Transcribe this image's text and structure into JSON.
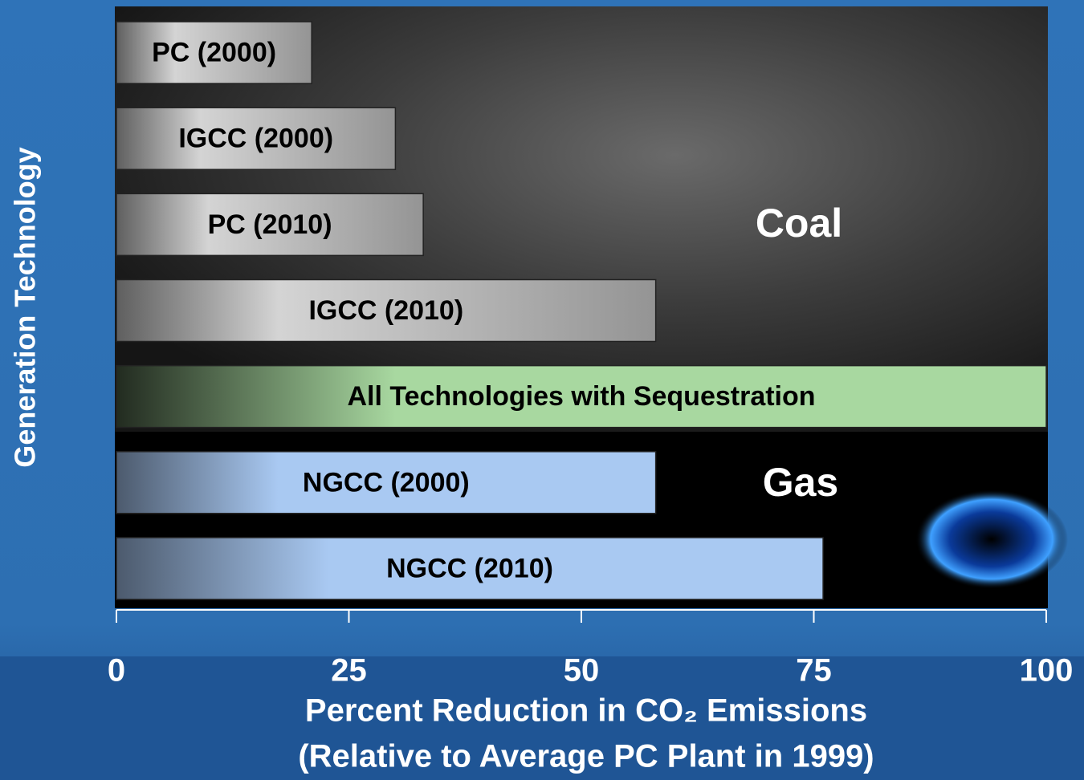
{
  "chart_data": {
    "type": "hbar",
    "categories": [
      "PC (2000)",
      "IGCC (2000)",
      "PC (2010)",
      "IGCC (2010)",
      "All Technologies with Sequestration",
      "NGCC (2000)",
      "NGCC (2010)"
    ],
    "values": [
      21,
      30,
      33,
      58,
      100,
      58,
      76
    ],
    "colors": [
      "#d4d4d4",
      "#d4d4d4",
      "#d4d4d4",
      "#d4d4d4",
      "#a8d8a0",
      "#a9c9f2",
      "#a9c9f2"
    ],
    "xlim": [
      0,
      100
    ],
    "xticks": [
      0,
      25,
      50,
      75,
      100
    ],
    "xlabel": [
      "Percent Reduction in CO₂ Emissions",
      "(Relative to Average PC Plant in 1999)"
    ],
    "ylabel": "Generation Technology",
    "annotations": [
      "Coal",
      "Gas"
    ]
  }
}
